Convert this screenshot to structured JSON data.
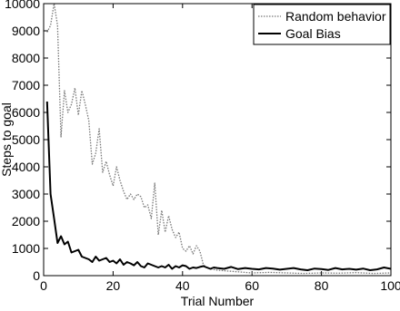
{
  "chart_data": {
    "type": "line",
    "title": "",
    "xlabel": "Trial Number",
    "ylabel": "Steps to goal",
    "xlim": [
      0,
      100
    ],
    "ylim": [
      0,
      10000
    ],
    "x_ticks": [
      0,
      20,
      40,
      60,
      80,
      100
    ],
    "y_ticks": [
      0,
      1000,
      2000,
      3000,
      4000,
      5000,
      6000,
      7000,
      8000,
      9000,
      10000
    ],
    "grid": false,
    "legend_position": "top-right",
    "series": [
      {
        "name": "Random behavior",
        "style": "dotted",
        "color": "#777777",
        "x": [
          1,
          2,
          3,
          4,
          5,
          6,
          7,
          8,
          9,
          10,
          11,
          12,
          13,
          14,
          15,
          16,
          17,
          18,
          19,
          20,
          21,
          22,
          23,
          24,
          25,
          26,
          27,
          28,
          29,
          30,
          31,
          32,
          33,
          34,
          35,
          36,
          37,
          38,
          39,
          40,
          41,
          42,
          43,
          44,
          45,
          46,
          47,
          48,
          50,
          55,
          60,
          65,
          70,
          75,
          80,
          85,
          90,
          95,
          100
        ],
        "values": [
          8950,
          9200,
          10000,
          9200,
          5100,
          6800,
          6000,
          6300,
          6900,
          5900,
          6800,
          6300,
          5700,
          4100,
          4500,
          5400,
          3800,
          4200,
          3700,
          3300,
          4000,
          3500,
          3100,
          2800,
          3000,
          2800,
          3000,
          2900,
          2500,
          2600,
          2100,
          3400,
          1500,
          2400,
          1600,
          2200,
          1700,
          1400,
          1600,
          1000,
          900,
          1100,
          800,
          1100,
          900,
          400,
          300,
          250,
          200,
          150,
          100,
          120,
          100,
          80,
          100,
          90,
          110,
          80,
          100
        ]
      },
      {
        "name": "Goal Bias",
        "style": "solid",
        "color": "#000000",
        "x": [
          1,
          2,
          3,
          4,
          5,
          6,
          7,
          8,
          9,
          10,
          11,
          12,
          13,
          14,
          15,
          16,
          17,
          18,
          19,
          20,
          21,
          22,
          23,
          24,
          25,
          26,
          27,
          28,
          29,
          30,
          31,
          32,
          33,
          34,
          35,
          36,
          37,
          38,
          39,
          40,
          41,
          42,
          43,
          44,
          45,
          46,
          47,
          48,
          49,
          50,
          52,
          54,
          56,
          58,
          60,
          62,
          64,
          66,
          68,
          70,
          72,
          74,
          76,
          78,
          80,
          82,
          84,
          86,
          88,
          90,
          92,
          94,
          96,
          98,
          100
        ],
        "values": [
          6400,
          3000,
          2100,
          1200,
          1450,
          1150,
          1250,
          850,
          900,
          950,
          700,
          650,
          600,
          500,
          700,
          550,
          600,
          650,
          500,
          550,
          450,
          600,
          400,
          500,
          450,
          380,
          500,
          350,
          300,
          450,
          400,
          350,
          300,
          350,
          300,
          400,
          250,
          350,
          300,
          380,
          350,
          250,
          300,
          280,
          320,
          350,
          300,
          250,
          300,
          280,
          250,
          320,
          240,
          280,
          250,
          230,
          280,
          260,
          220,
          250,
          280,
          230,
          200,
          260,
          240,
          210,
          280,
          230,
          250,
          220,
          260,
          200,
          230,
          300,
          250
        ]
      }
    ]
  }
}
